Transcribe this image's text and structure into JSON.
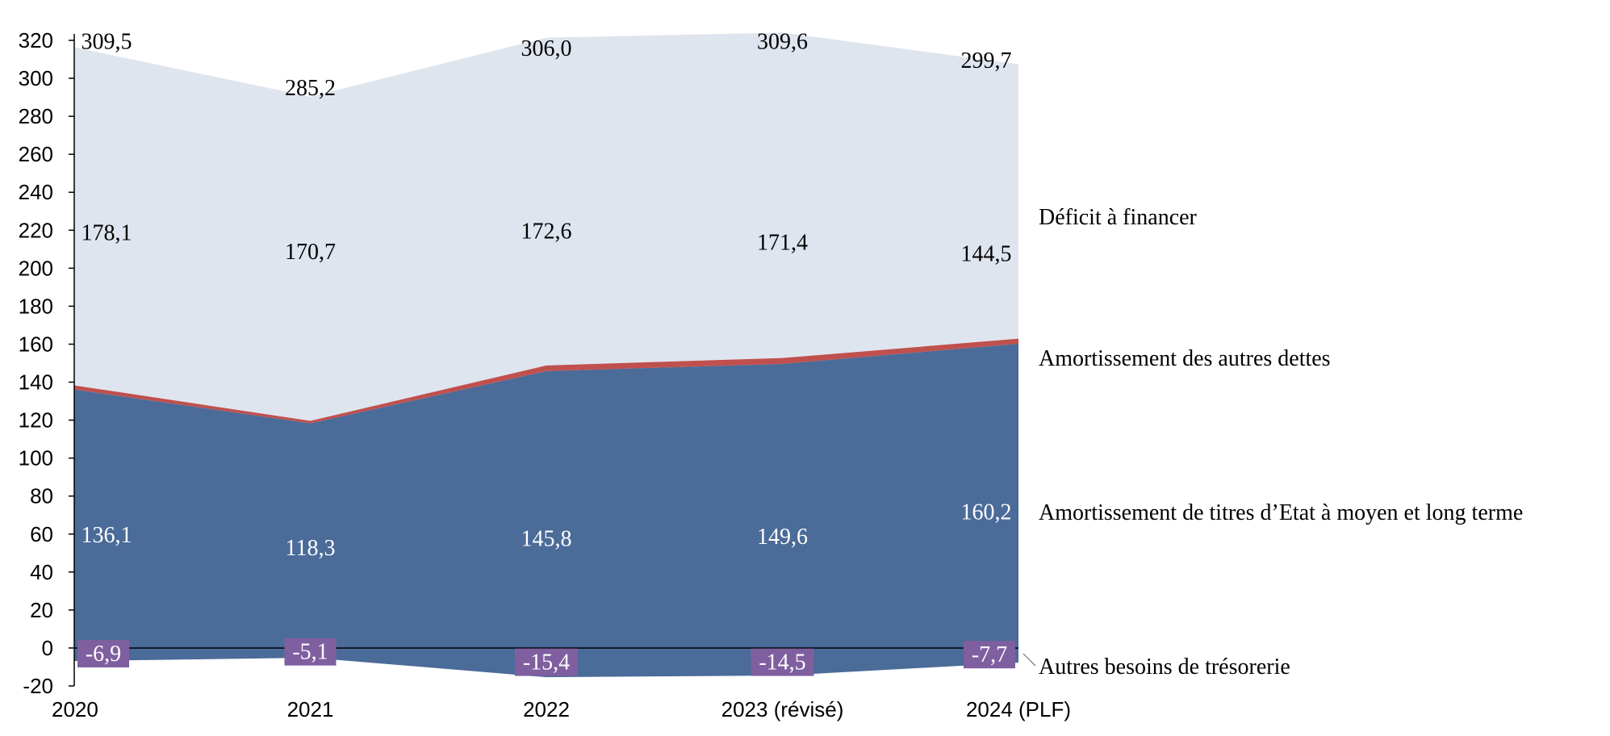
{
  "chart_data": {
    "type": "area",
    "stacked": true,
    "categories": [
      "2020",
      "2021",
      "2022",
      "2023 (révisé)",
      "2024 (PLF)"
    ],
    "ylim": [
      -20,
      320
    ],
    "yticks": [
      -20,
      0,
      20,
      40,
      60,
      80,
      100,
      120,
      140,
      160,
      180,
      200,
      220,
      240,
      260,
      280,
      300,
      320
    ],
    "series": [
      {
        "name": "Autres besoins de trésorerie",
        "values": [
          -6.9,
          -5.1,
          -15.4,
          -14.5,
          -7.7
        ],
        "labels": [
          "-6,9",
          "-5,1",
          "-15,4",
          "-14,5",
          "-7,7"
        ],
        "color": "#4b6b98",
        "label_bg": "#7f5f9f",
        "label_color": "#ffffff"
      },
      {
        "name": "Amortissement de titres d’Etat à moyen et long terme",
        "values": [
          136.1,
          118.3,
          145.8,
          149.6,
          160.2
        ],
        "labels": [
          "136,1",
          "118,3",
          "145,8",
          "149,6",
          "160,2"
        ],
        "color": "#4b6b98",
        "label_color": "#ffffff"
      },
      {
        "name": "Amortissement des autres dettes",
        "values": [
          2.2,
          1.3,
          3.0,
          3.1,
          2.7
        ],
        "color": "#c0504d"
      },
      {
        "name": "Déficit à financer",
        "values": [
          178.1,
          170.7,
          172.6,
          171.4,
          144.5
        ],
        "labels": [
          "178,1",
          "170,7",
          "172,6",
          "171,4",
          "144,5"
        ],
        "color": "#dfe5ef",
        "label_color": "#000000"
      }
    ],
    "totals": [
      309.5,
      285.2,
      306.0,
      309.6,
      299.7
    ],
    "total_labels": [
      "309,5",
      "285,2",
      "306,0",
      "309,6",
      "299,7"
    ],
    "legend": "right-inline"
  }
}
